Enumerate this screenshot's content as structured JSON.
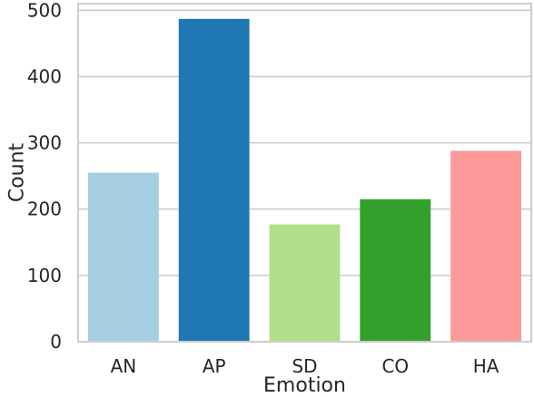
{
  "chart_data": {
    "type": "bar",
    "categories": [
      "AN",
      "AP",
      "SD",
      "CO",
      "HA"
    ],
    "values": [
      255,
      487,
      177,
      215,
      288
    ],
    "colors": [
      "#a6cee3",
      "#1f78b4",
      "#b2df8a",
      "#33a02c",
      "#fb9a99"
    ],
    "xlabel": "Emotion",
    "ylabel": "Count",
    "ylim": [
      0,
      510
    ],
    "yticks": [
      0,
      100,
      200,
      300,
      400,
      500
    ],
    "grid": true,
    "style": "seaborn-whitegrid"
  }
}
